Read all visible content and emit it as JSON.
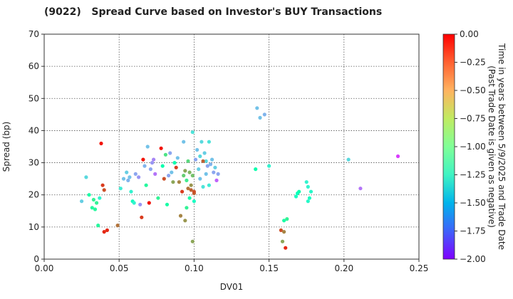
{
  "chart_data": {
    "type": "scatter",
    "title": "(9022)   Spread Curve based on Investor's BUY Transactions",
    "xlabel": "DV01",
    "ylabel": "Spread (bp)",
    "xlim": [
      0.0,
      0.25
    ],
    "ylim": [
      0,
      70
    ],
    "xticks": [
      "0.00",
      "0.05",
      "0.10",
      "0.15",
      "0.20",
      "0.25"
    ],
    "yticks": [
      "0",
      "10",
      "20",
      "30",
      "40",
      "50",
      "60",
      "70"
    ],
    "grid": true,
    "colorbar": {
      "label_line1": "Time in years between 5/9/2025 and Trade Date",
      "label_line2": "(Past Trade Date is given as negative)",
      "range": [
        -2.0,
        0.0
      ],
      "ticks": [
        "0.00",
        "−0.25",
        "−0.50",
        "−0.75",
        "−1.00",
        "−1.25",
        "−1.50",
        "−1.75",
        "−2.00"
      ]
    },
    "points": [
      [
        0.025,
        18.0,
        -1.4
      ],
      [
        0.028,
        25.5,
        -1.35
      ],
      [
        0.03,
        20.0,
        -0.9
      ],
      [
        0.032,
        16.0,
        -0.85
      ],
      [
        0.033,
        18.5,
        -0.8
      ],
      [
        0.034,
        15.5,
        -0.85
      ],
      [
        0.035,
        17.5,
        -0.8
      ],
      [
        0.036,
        10.5,
        -0.85
      ],
      [
        0.037,
        19.0,
        -1.2
      ],
      [
        0.038,
        36.0,
        -0.05
      ],
      [
        0.039,
        23.0,
        -0.15
      ],
      [
        0.04,
        21.5,
        -0.2
      ],
      [
        0.04,
        8.5,
        -0.1
      ],
      [
        0.042,
        9.0,
        -0.1
      ],
      [
        0.049,
        10.5,
        -0.3
      ],
      [
        0.051,
        22.0,
        -1.25
      ],
      [
        0.053,
        25.0,
        -1.45
      ],
      [
        0.055,
        27.0,
        -1.4
      ],
      [
        0.056,
        24.5,
        -1.5
      ],
      [
        0.057,
        25.5,
        -1.45
      ],
      [
        0.058,
        21.0,
        -1.2
      ],
      [
        0.059,
        18.0,
        -1.05
      ],
      [
        0.06,
        17.5,
        -1.2
      ],
      [
        0.061,
        26.5,
        -1.55
      ],
      [
        0.063,
        25.5,
        -1.6
      ],
      [
        0.064,
        17.0,
        -1.6
      ],
      [
        0.065,
        13.0,
        -0.15
      ],
      [
        0.066,
        31.0,
        -0.05
      ],
      [
        0.067,
        29.0,
        -1.5
      ],
      [
        0.068,
        23.0,
        -0.85
      ],
      [
        0.069,
        35.0,
        -1.45
      ],
      [
        0.07,
        17.5,
        -0.05
      ],
      [
        0.071,
        28.0,
        -1.55
      ],
      [
        0.072,
        30.0,
        -1.6
      ],
      [
        0.073,
        31.0,
        -1.65
      ],
      [
        0.074,
        26.5,
        -1.7
      ],
      [
        0.076,
        19.0,
        -0.8
      ],
      [
        0.078,
        34.5,
        -0.05
      ],
      [
        0.079,
        29.0,
        -0.95
      ],
      [
        0.08,
        25.0,
        -0.2
      ],
      [
        0.081,
        32.5,
        -0.7
      ],
      [
        0.082,
        17.0,
        -0.9
      ],
      [
        0.083,
        26.0,
        -1.55
      ],
      [
        0.084,
        33.0,
        -1.55
      ],
      [
        0.085,
        27.0,
        -1.45
      ],
      [
        0.086,
        24.0,
        -0.45
      ],
      [
        0.087,
        30.0,
        -0.95
      ],
      [
        0.088,
        28.5,
        -0.15
      ],
      [
        0.089,
        31.5,
        -1.45
      ],
      [
        0.09,
        24.0,
        -0.35
      ],
      [
        0.091,
        13.5,
        -0.35
      ],
      [
        0.092,
        21.0,
        -0.15
      ],
      [
        0.093,
        36.5,
        -1.45
      ],
      [
        0.093,
        26.0,
        -0.6
      ],
      [
        0.094,
        27.5,
        -0.45
      ],
      [
        0.095,
        24.5,
        -0.75
      ],
      [
        0.095,
        16.0,
        -0.8
      ],
      [
        0.096,
        22.0,
        -0.3
      ],
      [
        0.096,
        30.5,
        -0.65
      ],
      [
        0.097,
        27.0,
        -0.5
      ],
      [
        0.097,
        19.0,
        -0.9
      ],
      [
        0.098,
        23.0,
        -0.4
      ],
      [
        0.098,
        21.5,
        -0.25
      ],
      [
        0.099,
        26.0,
        -0.55
      ],
      [
        0.099,
        39.5,
        -1.3
      ],
      [
        0.1,
        20.5,
        -0.25
      ],
      [
        0.1,
        18.0,
        -1.1
      ],
      [
        0.101,
        31.0,
        -1.55
      ],
      [
        0.102,
        34.0,
        -1.45
      ],
      [
        0.103,
        28.0,
        -1.4
      ],
      [
        0.104,
        25.0,
        -1.45
      ],
      [
        0.105,
        36.5,
        -1.35
      ],
      [
        0.106,
        22.5,
        -1.3
      ],
      [
        0.107,
        33.0,
        -1.4
      ],
      [
        0.108,
        30.5,
        -1.35
      ],
      [
        0.108,
        26.5,
        -1.45
      ],
      [
        0.109,
        29.0,
        -1.55
      ],
      [
        0.11,
        36.5,
        -1.3
      ],
      [
        0.11,
        23.0,
        -1.25
      ],
      [
        0.111,
        29.5,
        -1.5
      ],
      [
        0.112,
        31.0,
        -1.45
      ],
      [
        0.113,
        27.0,
        -1.55
      ],
      [
        0.114,
        28.5,
        -1.4
      ],
      [
        0.115,
        24.5,
        -1.75
      ],
      [
        0.116,
        26.5,
        -1.55
      ],
      [
        0.1,
        21.0,
        -0.2
      ],
      [
        0.099,
        5.5,
        -0.45
      ],
      [
        0.094,
        12.0,
        -0.4
      ],
      [
        0.104,
        32.0,
        -1.35
      ],
      [
        0.106,
        30.5,
        -0.25
      ],
      [
        0.141,
        28.0,
        -0.95
      ],
      [
        0.142,
        47.0,
        -1.45
      ],
      [
        0.144,
        44.0,
        -1.45
      ],
      [
        0.147,
        45.0,
        -1.5
      ],
      [
        0.15,
        29.0,
        -1.2
      ],
      [
        0.158,
        9.0,
        -0.2
      ],
      [
        0.159,
        5.5,
        -0.45
      ],
      [
        0.16,
        12.0,
        -0.9
      ],
      [
        0.161,
        3.5,
        -0.1
      ],
      [
        0.16,
        8.5,
        -0.35
      ],
      [
        0.162,
        12.5,
        -0.8
      ],
      [
        0.168,
        19.5,
        -1.1
      ],
      [
        0.169,
        20.5,
        -1.05
      ],
      [
        0.17,
        21.0,
        -0.95
      ],
      [
        0.175,
        24.0,
        -1.2
      ],
      [
        0.176,
        22.5,
        -1.2
      ],
      [
        0.176,
        18.0,
        -1.15
      ],
      [
        0.177,
        19.0,
        -1.1
      ],
      [
        0.178,
        21.0,
        -1.15
      ],
      [
        0.203,
        31.0,
        -1.35
      ],
      [
        0.211,
        22.0,
        -1.7
      ],
      [
        0.236,
        32.0,
        -1.85
      ]
    ]
  }
}
